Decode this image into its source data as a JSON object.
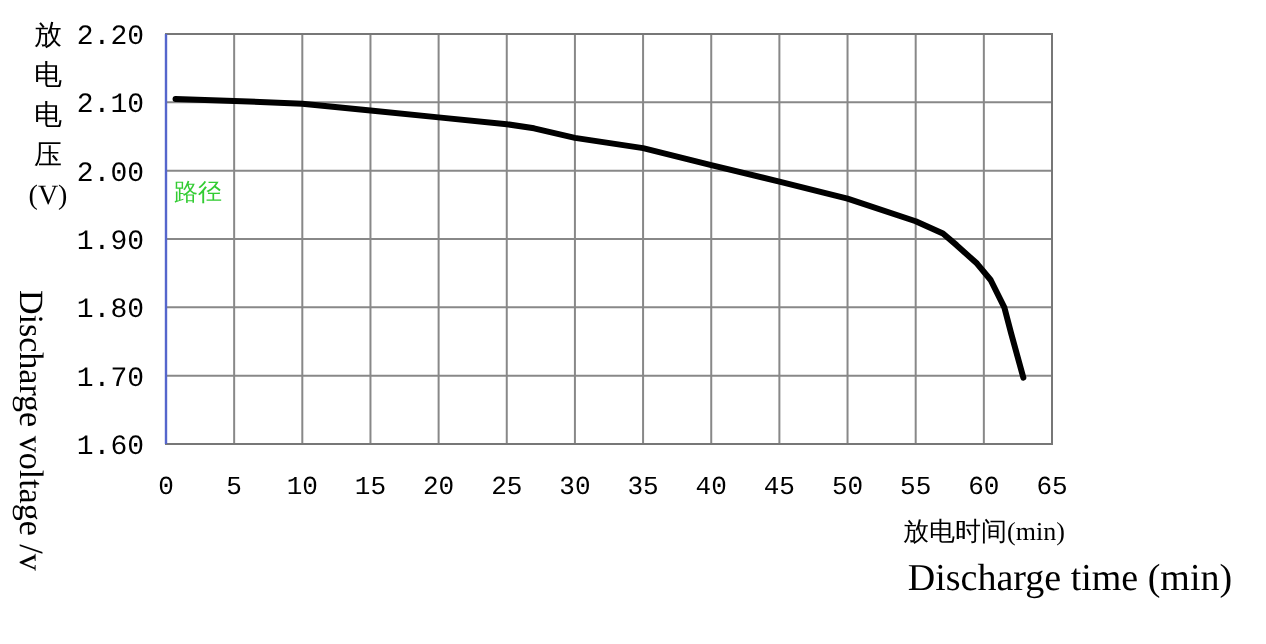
{
  "chart_data": {
    "type": "line",
    "xlabel": "放电时间(min)",
    "ylabel": "放电电压(V)",
    "annotations": [
      "Discharge time (min)",
      "Discharge voltage /v",
      "路径"
    ],
    "series": [
      {
        "color": "#000000",
        "x": [
          0.7,
          5,
          10,
          15,
          20,
          25,
          27,
          30,
          35,
          40,
          45,
          50,
          55,
          57,
          58,
          59.5,
          60.5,
          61.5,
          62,
          62.9
        ],
        "values": [
          2.105,
          2.102,
          2.098,
          2.088,
          2.078,
          2.068,
          2.062,
          2.048,
          2.033,
          2.008,
          1.984,
          1.959,
          1.926,
          1.908,
          1.891,
          1.864,
          1.84,
          1.8,
          1.762,
          1.697
        ]
      }
    ],
    "xlim": [
      0,
      65
    ],
    "xticks": [
      0,
      5,
      10,
      15,
      20,
      25,
      30,
      35,
      40,
      45,
      50,
      55,
      60,
      65
    ],
    "ylim": [
      1.6,
      2.2
    ],
    "yticks": [
      {
        "value": 1.6,
        "label": "1.60"
      },
      {
        "value": 1.7,
        "label": "1.70"
      },
      {
        "value": 1.8,
        "label": "1.80"
      },
      {
        "value": 1.9,
        "label": "1.90"
      },
      {
        "value": 2.0,
        "label": "2.00"
      },
      {
        "value": 2.1,
        "label": "2.10"
      },
      {
        "value": 2.2,
        "label": "2.20"
      }
    ],
    "grid": true,
    "marker": "none",
    "line_style": "solid"
  }
}
